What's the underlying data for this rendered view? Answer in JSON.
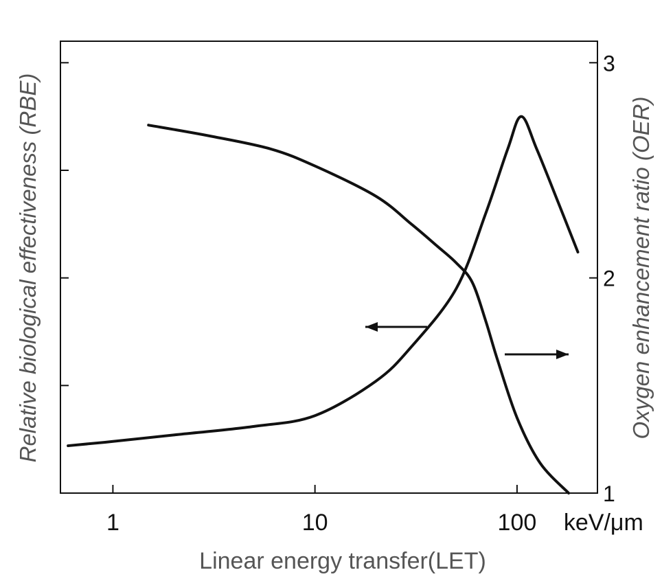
{
  "chart_data": {
    "type": "line",
    "x_scale": "log",
    "xlim": [
      0.55,
      250
    ],
    "xlabel": "Linear energy transfer(LET)",
    "x_unit_label": "keV/μm",
    "x_ticks": [
      1,
      10,
      100
    ],
    "x_tick_labels": [
      "1",
      "10",
      "100"
    ],
    "left_axis": {
      "label": "Relative biological effectiveness (RBE)",
      "ticks_shown_without_labels": 4
    },
    "right_axis": {
      "label": "Oxygen enhancement ratio (OER)",
      "ylim": [
        1,
        3.1
      ],
      "ticks": [
        1,
        2,
        3
      ],
      "tick_labels": [
        "1",
        "2",
        "3"
      ]
    },
    "grid": false,
    "series": [
      {
        "axis": "left",
        "direction_arrow": "left",
        "points": [
          [
            0.6,
            1.22
          ],
          [
            1,
            1.24
          ],
          [
            2,
            1.27
          ],
          [
            5,
            1.31
          ],
          [
            10,
            1.36
          ],
          [
            20,
            1.52
          ],
          [
            30,
            1.68
          ],
          [
            50,
            1.95
          ],
          [
            70,
            2.3
          ],
          [
            90,
            2.6
          ],
          [
            105,
            2.75
          ],
          [
            125,
            2.6
          ],
          [
            160,
            2.35
          ],
          [
            200,
            2.12
          ]
        ]
      },
      {
        "axis": "right",
        "direction_arrow": "right",
        "points": [
          [
            1.5,
            2.71
          ],
          [
            3,
            2.66
          ],
          [
            6,
            2.6
          ],
          [
            10,
            2.52
          ],
          [
            20,
            2.38
          ],
          [
            30,
            2.25
          ],
          [
            40,
            2.15
          ],
          [
            50,
            2.07
          ],
          [
            60,
            1.98
          ],
          [
            70,
            1.8
          ],
          [
            80,
            1.62
          ],
          [
            100,
            1.35
          ],
          [
            130,
            1.14
          ],
          [
            180,
            1.0
          ]
        ]
      }
    ]
  }
}
